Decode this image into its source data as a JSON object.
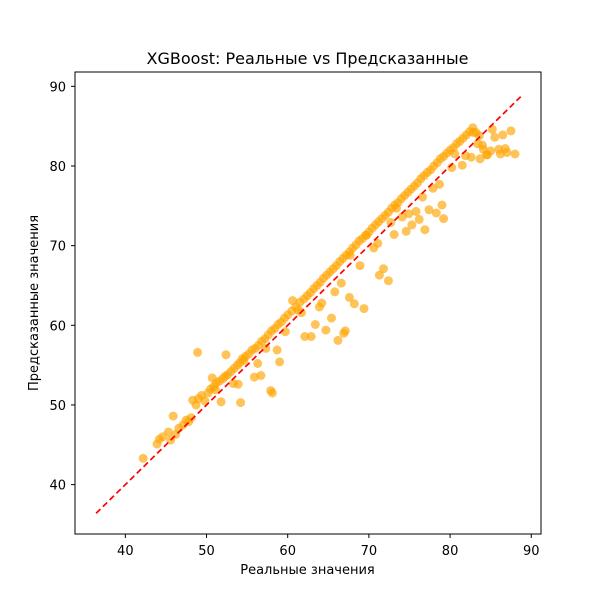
{
  "chart_data": {
    "type": "scatter",
    "title": "XGBoost: Реальные vs Предсказанные",
    "xlabel": "Реальные значения",
    "ylabel": "Предсказанные значения",
    "xlim": [
      33.8,
      91.2
    ],
    "ylim": [
      33.8,
      91.8
    ],
    "xticks": [
      40,
      50,
      60,
      70,
      80,
      90
    ],
    "yticks": [
      40,
      50,
      60,
      70,
      80,
      90
    ],
    "grid": false,
    "point_color": "#FFA500",
    "point_alpha": 0.65,
    "reference_line": {
      "color": "#FF0000",
      "style": "dashed",
      "from": [
        36.4,
        36.4
      ],
      "to": [
        88.7,
        88.7
      ]
    },
    "series": [
      {
        "x": [
          42.2,
          43.9,
          44.2,
          44.6,
          45.3,
          45.6,
          45.9,
          46.2,
          46.6,
          47.1,
          47.5,
          47.8,
          48.1,
          48.3,
          48.7,
          49.0,
          49.4,
          49.8,
          50.2,
          50.5,
          50.9,
          51.2,
          51.6,
          52.0,
          52.3,
          52.6,
          53.0,
          53.4,
          53.8,
          54.1,
          54.4,
          54.8,
          55.2,
          55.6,
          56.0,
          56.4,
          56.8,
          57.2,
          57.6,
          58.0,
          58.4,
          58.8,
          59.2,
          59.6,
          60.0,
          60.5,
          61.0,
          61.5,
          62.0,
          62.4,
          62.8,
          63.2,
          63.6,
          64.0,
          64.4,
          64.8,
          65.2,
          65.6,
          66.0,
          66.4,
          66.8,
          67.2,
          67.6,
          68.0,
          68.4,
          68.8,
          69.2,
          69.6,
          70.0,
          70.4,
          70.8,
          71.2,
          71.6,
          72.0,
          72.4,
          72.8,
          73.2,
          73.6,
          74.0,
          74.4,
          74.8,
          75.2,
          75.6,
          76.0,
          76.4,
          76.8,
          77.2,
          77.6,
          78.0,
          78.4,
          78.8,
          79.2,
          79.6,
          80.0,
          80.4,
          80.8,
          81.2,
          81.6,
          82.0,
          82.4,
          82.8,
          83.2,
          83.6,
          84.0,
          84.5,
          85.0,
          85.5,
          86.0,
          86.5,
          87.0,
          87.5,
          88.0,
          48.9,
          51.8,
          52.4,
          54.2,
          56.7,
          57.9,
          58.1,
          59.0,
          59.7,
          62.1,
          62.9,
          63.4,
          64.7,
          65.4,
          66.2,
          66.9,
          67.1,
          67.6,
          68.2,
          69.4,
          71.3,
          71.8,
          72.4,
          73.1,
          74.6,
          75.3,
          76.2,
          76.9,
          77.4,
          78.3,
          79.0,
          79.2,
          82.6,
          83.7,
          84.1,
          86.2,
          86.8,
          50.7,
          51.1,
          53.3,
          54.6,
          55.9,
          57.3,
          60.6,
          61.7,
          63.9,
          65.8,
          67.7,
          69.7,
          70.6,
          73.4,
          74.1,
          75.8,
          77.9,
          80.6,
          81.5,
          82.9,
          84.6,
          53.9,
          56.3,
          58.7,
          61.3,
          64.2,
          66.6,
          68.9,
          71.1,
          72.7,
          74.9,
          76.6,
          78.7,
          80.2,
          81.9,
          83.4,
          85.2
        ],
        "y": [
          43.3,
          45.1,
          45.7,
          46.0,
          46.6,
          45.6,
          48.6,
          46.3,
          47.1,
          47.5,
          48.1,
          47.9,
          48.4,
          50.6,
          50.0,
          50.8,
          51.2,
          50.5,
          51.5,
          52.0,
          52.3,
          52.8,
          53.0,
          53.3,
          53.6,
          53.8,
          54.2,
          54.6,
          55.0,
          55.3,
          55.8,
          56.1,
          56.4,
          56.9,
          57.1,
          57.5,
          58.0,
          58.3,
          58.8,
          59.3,
          59.6,
          60.1,
          60.4,
          60.9,
          61.3,
          61.8,
          62.3,
          62.9,
          63.3,
          63.7,
          64.1,
          64.6,
          65.0,
          65.4,
          65.9,
          66.3,
          66.7,
          67.1,
          67.5,
          68.0,
          68.4,
          68.8,
          69.2,
          69.7,
          70.1,
          70.6,
          70.9,
          71.3,
          71.7,
          72.2,
          72.6,
          73.0,
          73.4,
          73.8,
          74.2,
          74.7,
          75.1,
          75.4,
          75.9,
          76.3,
          76.7,
          77.1,
          77.5,
          77.9,
          78.4,
          78.8,
          79.2,
          79.5,
          80.0,
          80.4,
          80.9,
          81.2,
          81.6,
          82.0,
          82.3,
          82.8,
          83.1,
          83.5,
          83.9,
          84.3,
          84.8,
          84.2,
          83.8,
          82.6,
          81.4,
          81.9,
          83.6,
          82.1,
          83.9,
          81.7,
          84.4,
          81.5,
          56.6,
          50.4,
          56.3,
          50.3,
          53.7,
          51.8,
          51.5,
          55.4,
          59.2,
          58.6,
          58.6,
          60.1,
          59.4,
          60.9,
          58.1,
          59.0,
          59.3,
          63.5,
          62.7,
          62.1,
          66.3,
          67.1,
          65.6,
          71.4,
          71.8,
          72.6,
          73.3,
          72.0,
          74.5,
          74.1,
          75.1,
          73.4,
          81.1,
          80.9,
          82.1,
          81.5,
          82.2,
          53.4,
          51.9,
          52.7,
          55.6,
          53.5,
          57.1,
          63.1,
          61.6,
          62.3,
          64.2,
          68.8,
          71.3,
          69.7,
          74.7,
          73.6,
          74.3,
          77.2,
          81.5,
          80.1,
          84.2,
          81.4,
          52.6,
          55.2,
          56.9,
          61.9,
          62.8,
          65.3,
          67.5,
          70.3,
          72.9,
          74.0,
          76.1,
          77.7,
          79.8,
          81.3,
          82.8,
          84.6
        ]
      }
    ]
  }
}
